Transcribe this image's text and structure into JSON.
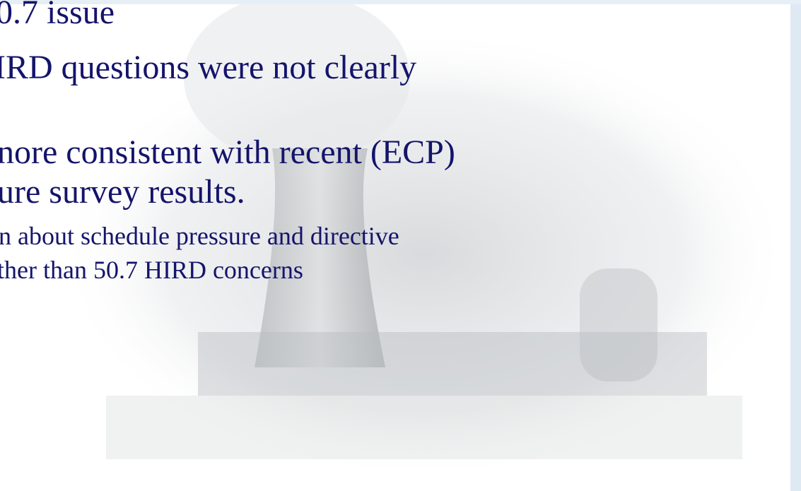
{
  "slide": {
    "lines": [
      {
        "text": "0.7 issue",
        "level": 1
      },
      {
        "text": "IRD questions were not clearly",
        "level": 1
      },
      {
        "text": "nore consistent with recent (ECP)",
        "level": 1
      },
      {
        "text": "ure survey results.",
        "level": 1
      },
      {
        "text": "n about schedule pressure and directive",
        "level": 2
      },
      {
        "text": "ther than 50.7 HIRD concerns",
        "level": 2
      }
    ]
  }
}
